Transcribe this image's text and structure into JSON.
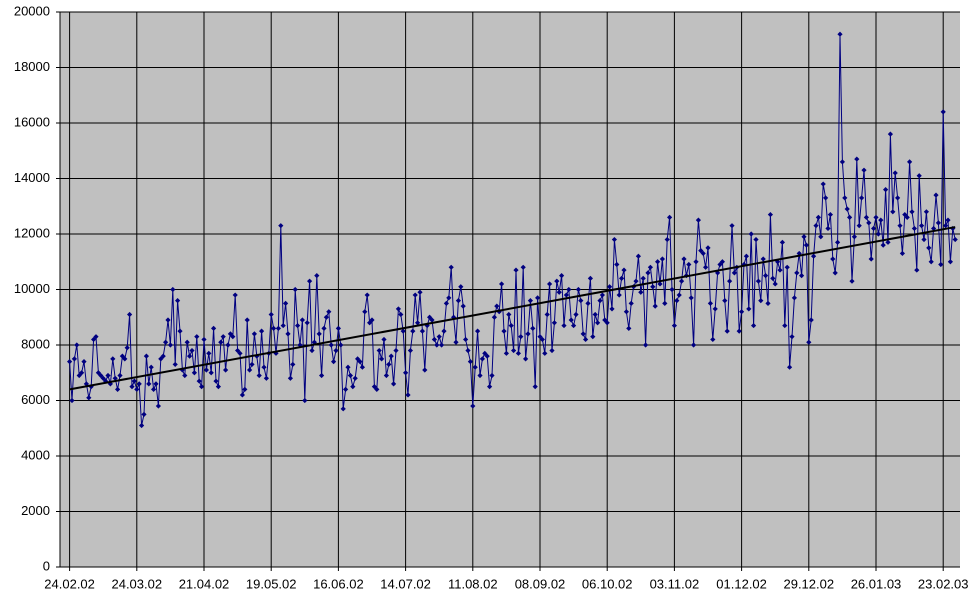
{
  "chart_data": {
    "type": "line",
    "color": "#000080",
    "x": [
      "24.02.02",
      "25.02.02",
      "26.02.02",
      "27.02.02",
      "28.02.02",
      "01.03.02",
      "02.03.02",
      "03.03.02",
      "04.03.02",
      "05.03.02",
      "06.03.02",
      "07.03.02",
      "08.03.02",
      "09.03.02",
      "10.03.02",
      "11.03.02",
      "12.03.02",
      "13.03.02",
      "14.03.02",
      "15.03.02",
      "16.03.02",
      "17.03.02",
      "18.03.02",
      "19.03.02",
      "20.03.02",
      "21.03.02",
      "22.03.02",
      "23.03.02",
      "24.03.02",
      "25.03.02",
      "26.03.02",
      "27.03.02",
      "28.03.02",
      "29.03.02",
      "30.03.02",
      "31.03.02",
      "01.04.02",
      "02.04.02",
      "03.04.02",
      "04.04.02",
      "05.04.02",
      "06.04.02",
      "07.04.02",
      "08.04.02",
      "09.04.02",
      "10.04.02",
      "11.04.02",
      "12.04.02",
      "13.04.02",
      "14.04.02",
      "15.04.02",
      "16.04.02",
      "17.04.02",
      "18.04.02",
      "19.04.02",
      "20.04.02",
      "21.04.02",
      "22.04.02",
      "23.04.02",
      "24.04.02",
      "25.04.02",
      "26.04.02",
      "27.04.02",
      "28.04.02",
      "29.04.02",
      "30.04.02",
      "01.05.02",
      "02.05.02",
      "03.05.02",
      "04.05.02",
      "05.05.02",
      "06.05.02",
      "07.05.02",
      "08.05.02",
      "09.05.02",
      "10.05.02",
      "11.05.02",
      "12.05.02",
      "13.05.02",
      "14.05.02",
      "15.05.02",
      "16.05.02",
      "17.05.02",
      "18.05.02",
      "19.05.02",
      "20.05.02",
      "21.05.02",
      "22.05.02",
      "23.05.02",
      "24.05.02",
      "25.05.02",
      "26.05.02",
      "27.05.02",
      "28.05.02",
      "29.05.02",
      "30.05.02",
      "31.05.02",
      "01.06.02",
      "02.06.02",
      "03.06.02",
      "04.06.02",
      "05.06.02",
      "06.06.02",
      "07.06.02",
      "08.06.02",
      "09.06.02",
      "10.06.02",
      "11.06.02",
      "12.06.02",
      "13.06.02",
      "14.06.02",
      "15.06.02",
      "16.06.02",
      "17.06.02",
      "18.06.02",
      "19.06.02",
      "20.06.02",
      "21.06.02",
      "22.06.02",
      "23.06.02",
      "24.06.02",
      "25.06.02",
      "26.06.02",
      "27.06.02",
      "28.06.02",
      "29.06.02",
      "30.06.02",
      "01.07.02",
      "02.07.02",
      "03.07.02",
      "04.07.02",
      "05.07.02",
      "06.07.02",
      "07.07.02",
      "08.07.02",
      "09.07.02",
      "10.07.02",
      "11.07.02",
      "12.07.02",
      "13.07.02",
      "14.07.02",
      "15.07.02",
      "16.07.02",
      "17.07.02",
      "18.07.02",
      "19.07.02",
      "20.07.02",
      "21.07.02",
      "22.07.02",
      "23.07.02",
      "24.07.02",
      "25.07.02",
      "26.07.02",
      "27.07.02",
      "28.07.02",
      "29.07.02",
      "30.07.02",
      "31.07.02",
      "01.08.02",
      "02.08.02",
      "03.08.02",
      "04.08.02",
      "05.08.02",
      "06.08.02",
      "07.08.02",
      "08.08.02",
      "09.08.02",
      "10.08.02",
      "11.08.02",
      "12.08.02",
      "13.08.02",
      "14.08.02",
      "15.08.02",
      "16.08.02",
      "17.08.02",
      "18.08.02",
      "19.08.02",
      "20.08.02",
      "21.08.02",
      "22.08.02",
      "23.08.02",
      "24.08.02",
      "25.08.02",
      "26.08.02",
      "27.08.02",
      "28.08.02",
      "29.08.02",
      "30.08.02",
      "31.08.02",
      "01.09.02",
      "02.09.02",
      "03.09.02",
      "04.09.02",
      "05.09.02",
      "06.09.02",
      "07.09.02",
      "08.09.02",
      "09.09.02",
      "10.09.02",
      "11.09.02",
      "12.09.02",
      "13.09.02",
      "14.09.02",
      "15.09.02",
      "16.09.02",
      "17.09.02",
      "18.09.02",
      "19.09.02",
      "20.09.02",
      "21.09.02",
      "22.09.02",
      "23.09.02",
      "24.09.02",
      "25.09.02",
      "26.09.02",
      "27.09.02",
      "28.09.02",
      "29.09.02",
      "30.09.02",
      "01.10.02",
      "02.10.02",
      "03.10.02",
      "04.10.02",
      "05.10.02",
      "06.10.02",
      "07.10.02",
      "08.10.02",
      "09.10.02",
      "10.10.02",
      "11.10.02",
      "12.10.02",
      "13.10.02",
      "14.10.02",
      "15.10.02",
      "16.10.02",
      "17.10.02",
      "18.10.02",
      "19.10.02",
      "20.10.02",
      "21.10.02",
      "22.10.02",
      "23.10.02",
      "24.10.02",
      "25.10.02",
      "26.10.02",
      "27.10.02",
      "28.10.02",
      "29.10.02",
      "30.10.02",
      "31.10.02",
      "01.11.02",
      "02.11.02",
      "03.11.02",
      "04.11.02",
      "05.11.02",
      "06.11.02",
      "07.11.02",
      "08.11.02",
      "09.11.02",
      "10.11.02",
      "11.11.02",
      "12.11.02",
      "13.11.02",
      "14.11.02",
      "15.11.02",
      "16.11.02",
      "17.11.02",
      "18.11.02",
      "19.11.02",
      "20.11.02",
      "21.11.02",
      "22.11.02",
      "23.11.02",
      "24.11.02",
      "25.11.02",
      "26.11.02",
      "27.11.02",
      "28.11.02",
      "29.11.02",
      "30.11.02",
      "01.12.02",
      "02.12.02",
      "03.12.02",
      "04.12.02",
      "05.12.02",
      "06.12.02",
      "07.12.02",
      "08.12.02",
      "09.12.02",
      "10.12.02",
      "11.12.02",
      "12.12.02",
      "13.12.02",
      "14.12.02",
      "15.12.02",
      "16.12.02",
      "17.12.02",
      "18.12.02",
      "19.12.02",
      "20.12.02",
      "21.12.02",
      "22.12.02",
      "23.12.02",
      "24.12.02",
      "25.12.02",
      "26.12.02",
      "27.12.02",
      "28.12.02",
      "29.12.02",
      "30.12.02",
      "31.12.02",
      "01.01.03",
      "02.01.03",
      "03.01.03",
      "04.01.03",
      "05.01.03",
      "06.01.03",
      "07.01.03",
      "08.01.03",
      "09.01.03",
      "10.01.03",
      "11.01.03",
      "12.01.03",
      "13.01.03",
      "14.01.03",
      "15.01.03",
      "16.01.03",
      "17.01.03",
      "18.01.03",
      "19.01.03",
      "20.01.03",
      "21.01.03",
      "22.01.03",
      "23.01.03",
      "24.01.03",
      "25.01.03",
      "26.01.03",
      "27.01.03",
      "28.01.03",
      "29.01.03",
      "30.01.03",
      "31.01.03",
      "01.02.03",
      "02.02.03",
      "03.02.03",
      "04.02.03",
      "05.02.03",
      "06.02.03",
      "07.02.03",
      "08.02.03",
      "09.02.03",
      "10.02.03",
      "11.02.03",
      "12.02.03",
      "13.02.03",
      "14.02.03",
      "15.02.03",
      "16.02.03",
      "17.02.03",
      "18.02.03",
      "19.02.03",
      "20.02.03",
      "21.02.03",
      "22.02.03",
      "23.02.03",
      "24.02.03",
      "25.02.03",
      "26.02.03",
      "27.02.03",
      "28.02.03"
    ],
    "values": [
      7400,
      6000,
      7500,
      8000,
      6900,
      7000,
      7400,
      6600,
      6100,
      6500,
      8200,
      8300,
      7000,
      6900,
      6800,
      6700,
      6900,
      6600,
      7500,
      6800,
      6400,
      6900,
      7600,
      7500,
      7900,
      9100,
      6500,
      6700,
      6400,
      6600,
      5100,
      5500,
      7600,
      6600,
      7200,
      6400,
      6600,
      5800,
      7500,
      7600,
      8100,
      8900,
      8000,
      10000,
      7300,
      9600,
      8500,
      7100,
      6900,
      8100,
      7600,
      7800,
      7000,
      8300,
      6700,
      6500,
      8200,
      7100,
      7700,
      7000,
      8600,
      6700,
      6500,
      8100,
      8300,
      7100,
      8000,
      8400,
      8300,
      9800,
      7800,
      7700,
      6200,
      6400,
      8900,
      7100,
      7300,
      8400,
      7600,
      6900,
      8500,
      7200,
      6800,
      7700,
      9100,
      8600,
      7700,
      8600,
      12300,
      8700,
      9500,
      8400,
      6800,
      7300,
      10000,
      8700,
      8000,
      8900,
      6000,
      8800,
      10300,
      7800,
      8100,
      10500,
      8400,
      6900,
      8600,
      9000,
      9200,
      8000,
      7400,
      7800,
      8600,
      8000,
      5700,
      6400,
      7200,
      6900,
      6500,
      6800,
      7500,
      7400,
      7200,
      9200,
      9800,
      8800,
      8900,
      6500,
      6400,
      7800,
      7500,
      8200,
      6900,
      7300,
      7600,
      6600,
      7800,
      9300,
      9100,
      8500,
      7000,
      6200,
      7800,
      8500,
      9800,
      8800,
      9900,
      8500,
      7100,
      8700,
      9000,
      8900,
      8200,
      8000,
      8300,
      8000,
      8500,
      9500,
      9700,
      10800,
      9000,
      8100,
      9600,
      10100,
      9400,
      8200,
      7800,
      7400,
      5800,
      7200,
      8500,
      6900,
      7500,
      7700,
      7600,
      6500,
      6900,
      9000,
      9400,
      9200,
      10200,
      8500,
      7700,
      9100,
      8700,
      7800,
      10700,
      7700,
      8300,
      10800,
      7500,
      8400,
      9600,
      8600,
      6500,
      9700,
      8300,
      8200,
      7700,
      9100,
      10200,
      7800,
      8800,
      10300,
      9900,
      10500,
      8700,
      9800,
      10000,
      8900,
      8700,
      9100,
      10000,
      9600,
      8400,
      8200,
      9500,
      10400,
      8300,
      9100,
      8800,
      9600,
      9800,
      8900,
      8800,
      10100,
      9300,
      11800,
      10900,
      9800,
      10400,
      10700,
      9200,
      8600,
      9500,
      10100,
      10300,
      11200,
      9900,
      10400,
      8000,
      10600,
      10800,
      10100,
      9400,
      11000,
      10200,
      11100,
      9500,
      11800,
      12600,
      10000,
      8700,
      9600,
      9800,
      10300,
      11100,
      10500,
      10900,
      9700,
      8000,
      11000,
      12500,
      11400,
      11300,
      10800,
      11500,
      9500,
      8200,
      9300,
      10600,
      10900,
      11000,
      9600,
      8500,
      10300,
      12300,
      10600,
      10800,
      8500,
      9200,
      10900,
      11200,
      9300,
      12000,
      8700,
      11800,
      10300,
      9600,
      11100,
      10500,
      9500,
      12700,
      10400,
      10200,
      11000,
      10700,
      11700,
      8700,
      10800,
      7200,
      8300,
      9700,
      10600,
      11300,
      10500,
      11900,
      11600,
      8100,
      8900,
      11200,
      12300,
      12600,
      11900,
      13800,
      13300,
      12200,
      12700,
      11100,
      10600,
      11700,
      19200,
      14600,
      13300,
      12900,
      12600,
      10300,
      11900,
      14700,
      12300,
      13300,
      14300,
      12600,
      12400,
      11100,
      12200,
      12600,
      12000,
      12500,
      11600,
      13600,
      11700,
      15600,
      12800,
      14200,
      13300,
      12300,
      11300,
      12700,
      12600,
      14600,
      12800,
      12200,
      10700,
      14100,
      12300,
      11800,
      12800,
      11500,
      11000,
      12200,
      13400,
      12400,
      10900,
      16400,
      12300,
      12500,
      11000,
      12200,
      11800
    ],
    "trendline": {
      "x": [
        "24.02.02",
        "28.02.03"
      ],
      "values": [
        6400,
        12250
      ],
      "color": "#000000"
    },
    "xlim": [
      "20.02.02",
      "02.03.03"
    ],
    "xticks": [
      "24.02.02",
      "24.03.02",
      "21.04.02",
      "19.05.02",
      "16.06.02",
      "14.07.02",
      "11.08.02",
      "08.09.02",
      "06.10.02",
      "03.11.02",
      "01.12.02",
      "29.12.02",
      "26.01.03",
      "23.02.03"
    ],
    "ylim": [
      0,
      20000
    ],
    "yticks": [
      0,
      2000,
      4000,
      6000,
      8000,
      10000,
      12000,
      14000,
      16000,
      18000,
      20000
    ],
    "grid": true
  }
}
